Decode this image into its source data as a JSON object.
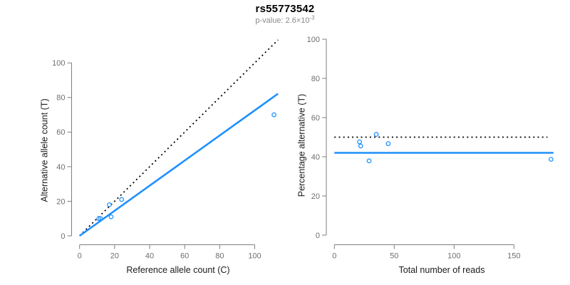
{
  "header": {
    "title": "rs55773542",
    "pvalue_label": "p-value: 2.6×10",
    "pvalue_exponent": "-3"
  },
  "colors": {
    "accent_blue": "#1E90FF",
    "reference_black": "#000000",
    "axis_gray": "#7f7f7f",
    "tick_text_gray": "#6e6e6e"
  },
  "chart_data": [
    {
      "type": "scatter",
      "title": "rs55773542",
      "xlabel": "Reference allele count (C)",
      "ylabel": "Alternative allele count (T)",
      "xticks": [
        0,
        20,
        40,
        60,
        80,
        100
      ],
      "yticks": [
        0,
        20,
        40,
        60,
        80,
        100
      ],
      "xlim": [
        0,
        113
      ],
      "ylim": [
        0,
        114
      ],
      "grid": false,
      "point_style": "open-circle",
      "point_color": "#1E90FF",
      "points": [
        {
          "x": 11,
          "y": 10
        },
        {
          "x": 12,
          "y": 10
        },
        {
          "x": 17,
          "y": 18
        },
        {
          "x": 18,
          "y": 11
        },
        {
          "x": 24,
          "y": 21
        },
        {
          "x": 111,
          "y": 70
        }
      ],
      "lines": [
        {
          "name": "identity-line",
          "style": "dotted",
          "color": "#000000",
          "width": 1.8,
          "from": [
            0,
            0
          ],
          "to": [
            113.3,
            113.3
          ]
        },
        {
          "name": "fit-line",
          "style": "solid",
          "color": "#1E90FF",
          "width": 2.6,
          "from": [
            0,
            0
          ],
          "to": [
            113.3,
            82.2
          ],
          "slope": 0.725
        }
      ]
    },
    {
      "type": "scatter",
      "xlabel": "Total number of reads",
      "ylabel": "Percentage alternative (T)",
      "xticks": [
        0,
        50,
        100,
        150
      ],
      "yticks": [
        0,
        20,
        40,
        60,
        80,
        100
      ],
      "xlim": [
        0,
        183
      ],
      "ylim": [
        0,
        100
      ],
      "grid": false,
      "point_style": "open-circle",
      "point_color": "#1E90FF",
      "points": [
        {
          "x": 21,
          "y": 47.6
        },
        {
          "x": 22,
          "y": 45.5
        },
        {
          "x": 29,
          "y": 37.9
        },
        {
          "x": 35,
          "y": 51.4
        },
        {
          "x": 45,
          "y": 46.7
        },
        {
          "x": 181,
          "y": 38.7
        }
      ],
      "lines": [
        {
          "name": "expected-50pct-line",
          "style": "dotted",
          "color": "#000000",
          "width": 1.8,
          "from": [
            0,
            50
          ],
          "to": [
            178,
            50
          ]
        },
        {
          "name": "observed-pct-line",
          "style": "solid",
          "color": "#1E90FF",
          "width": 2.6,
          "from": [
            0,
            42
          ],
          "to": [
            183,
            42
          ]
        }
      ]
    }
  ]
}
